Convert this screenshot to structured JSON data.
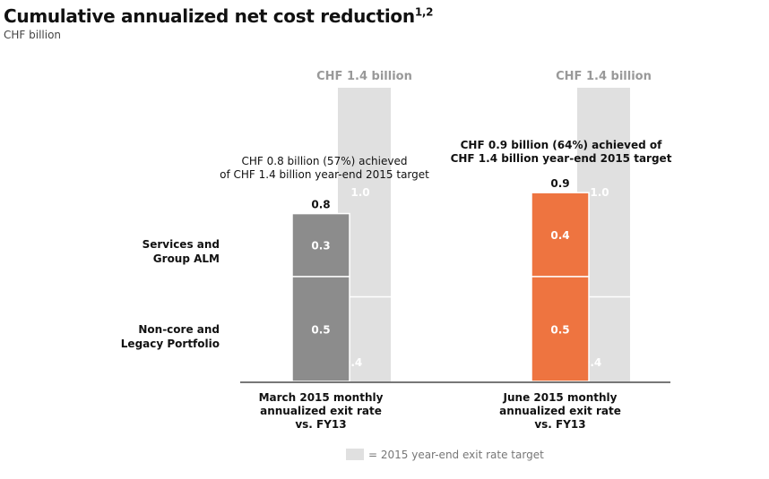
{
  "chart_data": {
    "type": "bar",
    "title": "Cumulative annualized net cost reduction",
    "title_footnote": "1,2",
    "subtitle": "CHF billion",
    "ylim": [
      0,
      1.4
    ],
    "row_labels": [
      "Services and Group ALM",
      "Non-core and Legacy Portfolio"
    ],
    "groups": [
      {
        "label": [
          "March 2015 monthly",
          "annualized exit rate",
          "vs. FY13"
        ],
        "achieved": {
          "bottom": 0.5,
          "top": 0.3,
          "total": 0.8,
          "color": "#8c8c8c"
        },
        "target": {
          "bottom": 0.4,
          "top": 1.0,
          "label": "CHF 1.4 billion"
        },
        "annotation": [
          "CHF 0.8 billion (57%) achieved",
          "of CHF 1.4 billion year-end 2015 target"
        ],
        "annotation_bold": false
      },
      {
        "label": [
          "June 2015 monthly",
          "annualized exit rate",
          "vs. FY13"
        ],
        "achieved": {
          "bottom": 0.5,
          "top": 0.4,
          "total": 0.9,
          "color": "#ee7440"
        },
        "target": {
          "bottom": 0.4,
          "top": 1.0,
          "label": "CHF 1.4 billion"
        },
        "annotation": [
          "CHF 0.9 billion (64%) achieved of",
          "CHF 1.4 billion year-end 2015 target"
        ],
        "annotation_bold": true
      }
    ],
    "legend": "= 2015 year-end exit rate target",
    "target_color": "#e0e0e0"
  }
}
